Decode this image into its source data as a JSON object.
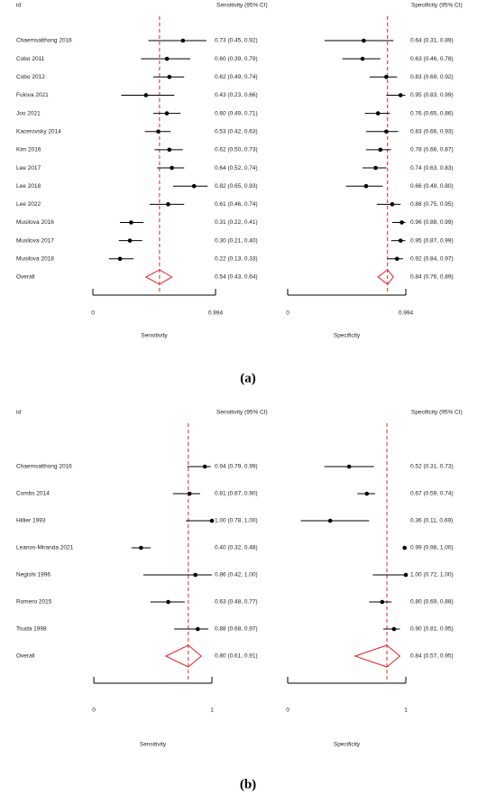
{
  "chart_data": [
    {
      "type": "forest",
      "label": "(a)",
      "id_header": "id",
      "categories": [
        "Chaemsalthong 2016",
        "Cobo 2011",
        "Cobo 2012",
        "Fulova 2021",
        "Joo 2021",
        "Kacerovsky 2014",
        "Kim 2016",
        "Lee 2017",
        "Lee 2018",
        "Lee 2022",
        "Musilova 2016",
        "Musilova 2017",
        "Musilova 2018",
        "Overall"
      ],
      "point_color": "#000000",
      "overall_color": "#e3242b",
      "series": [
        {
          "name": "Sensitivity (95% CI)",
          "axis_title": "Sensitivity",
          "xlim": [
            0,
            0.994
          ],
          "xticks": [
            0,
            0.994
          ],
          "values": [
            0.73,
            0.6,
            0.62,
            0.43,
            0.6,
            0.53,
            0.62,
            0.64,
            0.82,
            0.61,
            0.31,
            0.3,
            0.22,
            0.54
          ],
          "lower": [
            0.45,
            0.39,
            0.49,
            0.23,
            0.49,
            0.42,
            0.5,
            0.52,
            0.65,
            0.46,
            0.22,
            0.21,
            0.13,
            0.43
          ],
          "upper": [
            0.92,
            0.79,
            0.74,
            0.66,
            0.71,
            0.63,
            0.73,
            0.74,
            0.93,
            0.74,
            0.41,
            0.4,
            0.33,
            0.64
          ],
          "value_labels": [
            "0.73 (0.45, 0.92)",
            "0.60 (0.39, 0.79)",
            "0.62 (0.49, 0.74)",
            "0.43 (0.23, 0.66)",
            "0.60 (0.49, 0.71)",
            "0.53 (0.42, 0.63)",
            "0.62 (0.50, 0.73)",
            "0.64 (0.52, 0.74)",
            "0.82 (0.65, 0.93)",
            "0.61 (0.46, 0.74)",
            "0.31 (0.22, 0.41)",
            "0.30 (0.21, 0.40)",
            "0.22 (0.13, 0.33)",
            "0.54 (0.43, 0.64)"
          ]
        },
        {
          "name": "Specificity (95% CI)",
          "axis_title": "Specificity",
          "xlim": [
            0,
            0.994
          ],
          "xticks": [
            0,
            0.994
          ],
          "values": [
            0.64,
            0.63,
            0.83,
            0.95,
            0.76,
            0.83,
            0.78,
            0.74,
            0.66,
            0.88,
            0.96,
            0.95,
            0.92,
            0.84
          ],
          "lower": [
            0.31,
            0.46,
            0.69,
            0.83,
            0.65,
            0.66,
            0.66,
            0.63,
            0.49,
            0.75,
            0.88,
            0.87,
            0.84,
            0.76
          ],
          "upper": [
            0.89,
            0.78,
            0.92,
            0.99,
            0.86,
            0.93,
            0.87,
            0.83,
            0.8,
            0.95,
            0.99,
            0.99,
            0.97,
            0.89
          ],
          "value_labels": [
            "0.64 (0.31, 0.89)",
            "0.63 (0.46, 0.78)",
            "0.83 (0.69, 0.92)",
            "0.95 (0.83, 0.99)",
            "0.76 (0.65, 0.86)",
            "0.83 (0.66, 0.93)",
            "0.78 (0.66, 0.87)",
            "0.74 (0.63, 0.83)",
            "0.66 (0.49, 0.80)",
            "0.88 (0.75, 0.95)",
            "0.96 (0.88, 0.99)",
            "0.95 (0.87, 0.99)",
            "0.92 (0.84, 0.97)",
            "0.84 (0.76, 0.89)"
          ]
        }
      ]
    },
    {
      "type": "forest",
      "label": "(b)",
      "id_header": "id",
      "categories": [
        "Chaemsalthong 2016",
        "Combs 2014",
        "Hillier 1993",
        "Leanos-Miranda 2021",
        "Negishi 1996",
        "Romero 2015",
        "Tsuda 1998",
        "Overall"
      ],
      "point_color": "#000000",
      "overall_color": "#e3242b",
      "series": [
        {
          "name": "Sensitivity (95% CI)",
          "axis_title": "Sensitivity",
          "xlim": [
            0,
            1
          ],
          "xticks": [
            0,
            1
          ],
          "values": [
            0.94,
            0.81,
            1.0,
            0.4,
            0.86,
            0.63,
            0.88,
            0.8
          ],
          "lower": [
            0.79,
            0.67,
            0.78,
            0.32,
            0.42,
            0.48,
            0.68,
            0.61
          ],
          "upper": [
            0.99,
            0.9,
            1.0,
            0.48,
            1.0,
            0.77,
            0.97,
            0.91
          ],
          "value_labels": [
            "0.94 (0.79, 0.99)",
            "0.81 (0.67, 0.90)",
            "1.00 (0.78, 1.00)",
            "0.40 (0.32, 0.48)",
            "0.86 (0.42, 1.00)",
            "0.63 (0.48, 0.77)",
            "0.88 (0.68, 0.97)",
            "0.80 (0.61, 0.91)"
          ]
        },
        {
          "name": "Specificity (95% CI)",
          "axis_title": "Specificity",
          "xlim": [
            0,
            1
          ],
          "xticks": [
            0,
            1
          ],
          "values": [
            0.52,
            0.67,
            0.36,
            0.99,
            1.0,
            0.8,
            0.9,
            0.84
          ],
          "lower": [
            0.31,
            0.59,
            0.11,
            0.98,
            0.72,
            0.69,
            0.81,
            0.57
          ],
          "upper": [
            0.73,
            0.74,
            0.69,
            1.0,
            1.0,
            0.88,
            0.95,
            0.95
          ],
          "value_labels": [
            "0.52 (0.31, 0.73)",
            "0.67 (0.59, 0.74)",
            "0.36 (0.11, 0.69)",
            "0.99 (0.98, 1.00)",
            "1.00 (0.72, 1.00)",
            "0.80 (0.69, 0.88)",
            "0.90 (0.81, 0.95)",
            "0.84 (0.57, 0.95)"
          ]
        }
      ]
    }
  ]
}
